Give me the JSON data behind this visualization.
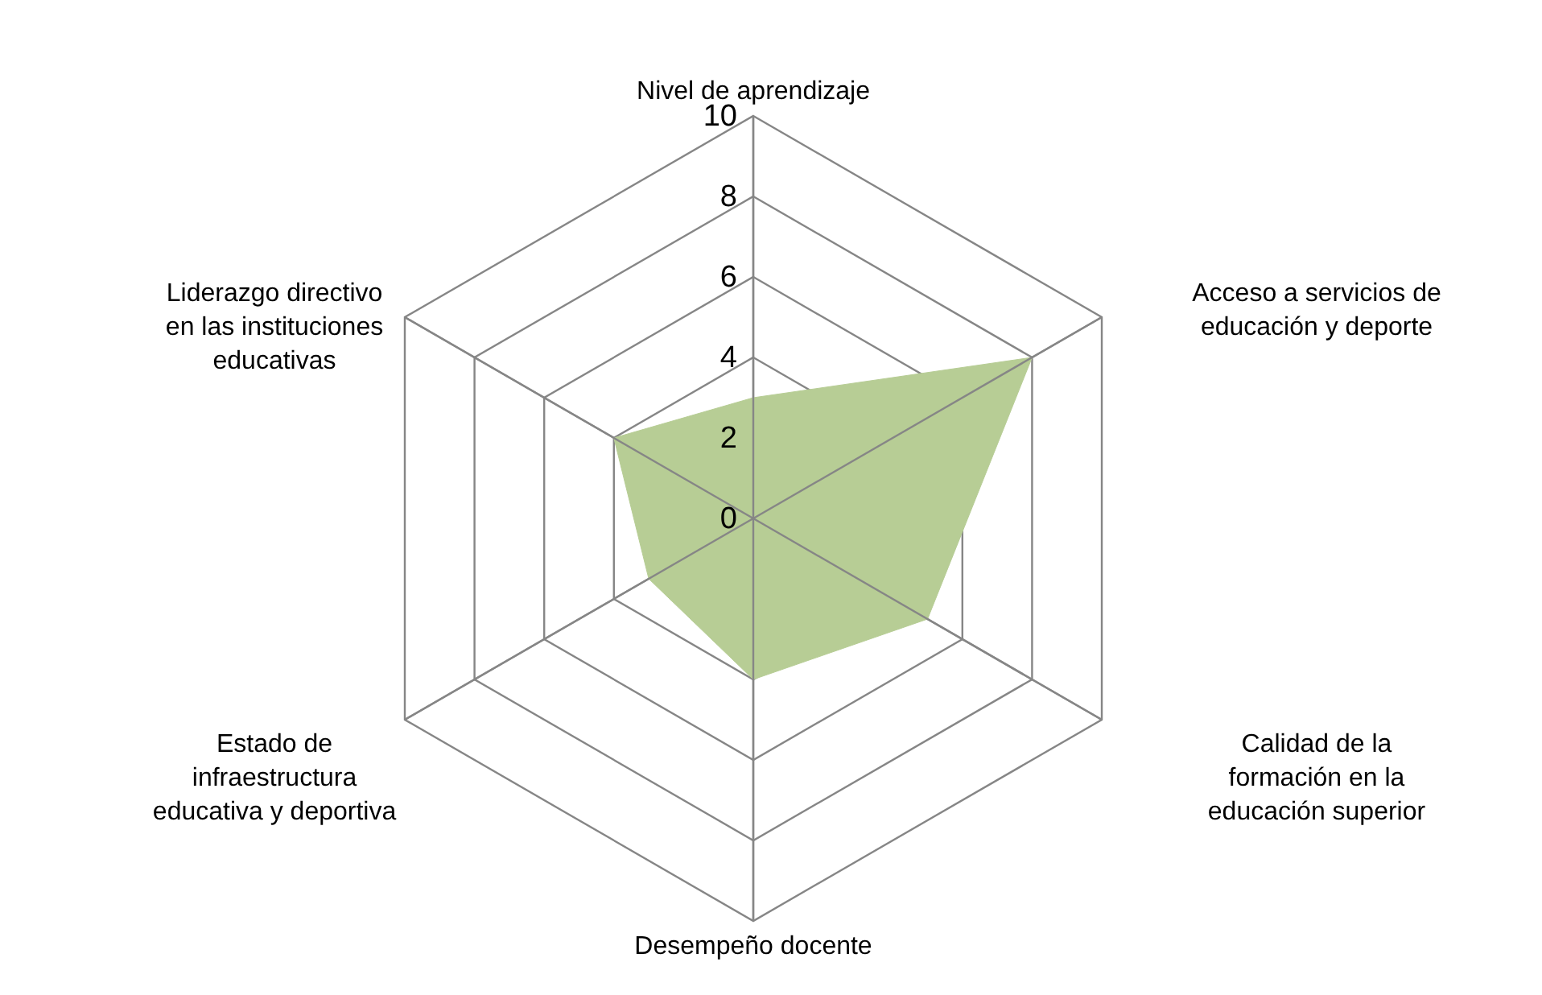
{
  "chart_data": {
    "type": "radar",
    "categories": [
      "Nivel de aprendizaje",
      "Acceso a servicios de educación y deporte",
      "Calidad de la formación en la educación superior",
      "Desempeño docente",
      "Estado de infraestructura educativa y deportiva",
      "Liderazgo directivo en las instituciones educativas"
    ],
    "series": [
      {
        "color": "#b7cd95",
        "values": [
          3,
          8,
          5,
          4,
          3,
          4
        ]
      }
    ],
    "ylim": [
      0,
      10
    ],
    "yticks": [
      0,
      2,
      4,
      6,
      8,
      10
    ],
    "grid": true
  }
}
